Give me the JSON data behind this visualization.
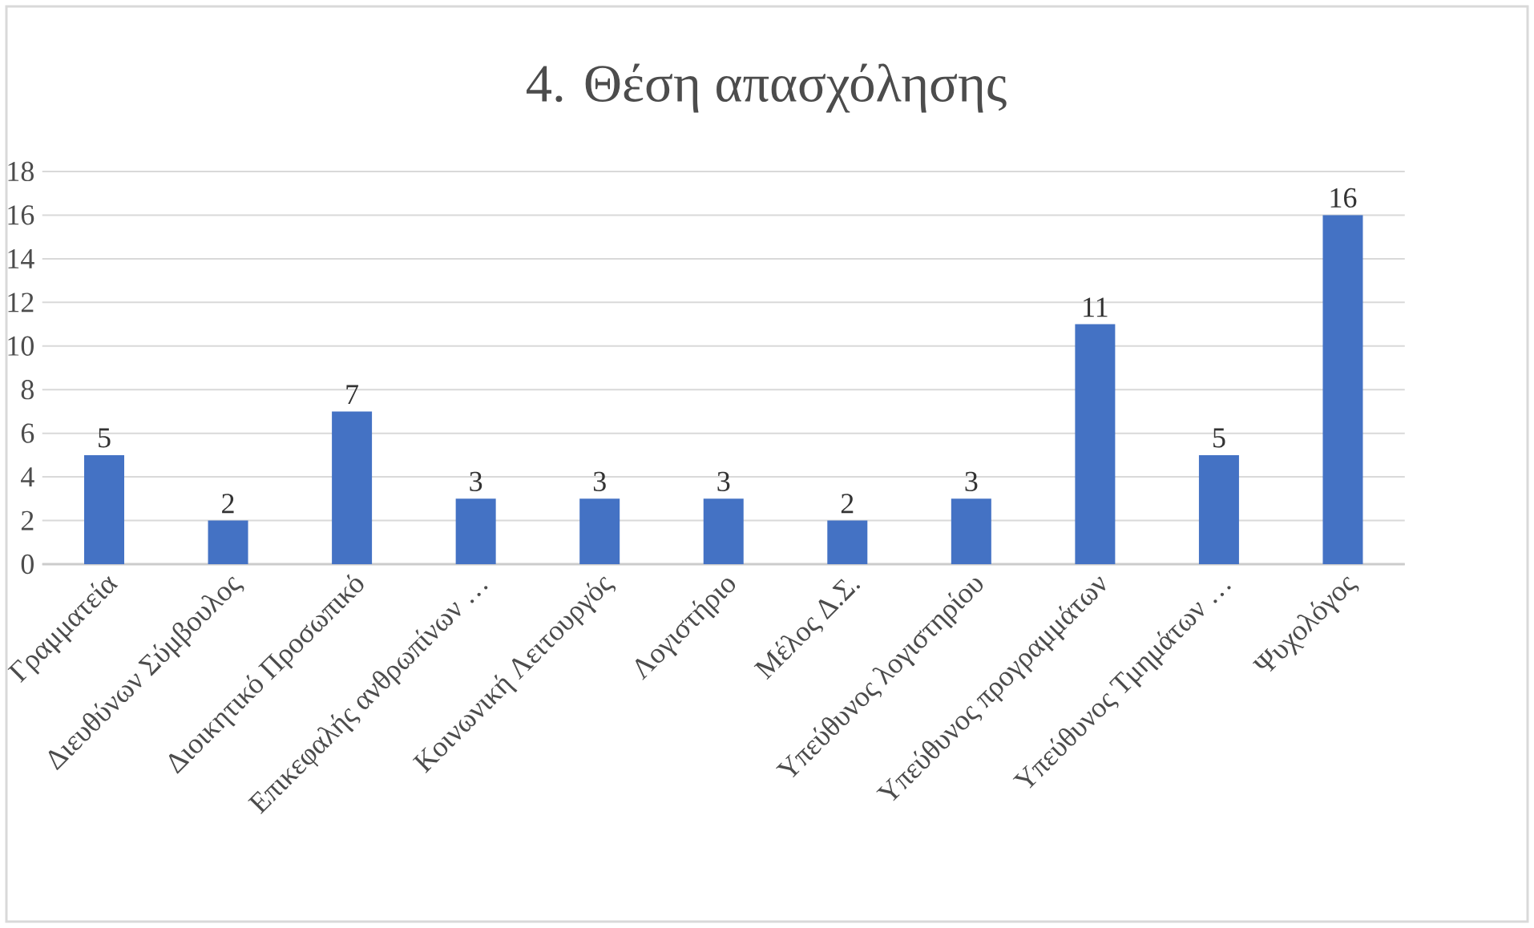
{
  "chart_data": {
    "type": "bar",
    "title": "4. Θέση απασχόλησης",
    "categories": [
      "Γραμματεία",
      "Διευθύνων Σύμβουλος",
      "Διοικητικό Προσωπικό",
      "Επικεφαλής ανθρωπίνων …",
      "Κοινωνική Λειτουργός",
      "Λογιστήριο",
      "Μέλος Δ.Σ.",
      "Υπεύθυνος λογιστηρίου",
      "Υπεύθυνος προγραμμάτων",
      "Υπεύθυνος Τμημάτων …",
      "Ψυχολόγος"
    ],
    "values": [
      5,
      2,
      7,
      3,
      3,
      3,
      2,
      3,
      11,
      5,
      16
    ],
    "color": "#4472c4",
    "ylim": [
      0,
      18
    ],
    "yticks": [
      0,
      2,
      4,
      6,
      8,
      10,
      12,
      14,
      16,
      18
    ],
    "grid": "y",
    "data_labels": true
  }
}
